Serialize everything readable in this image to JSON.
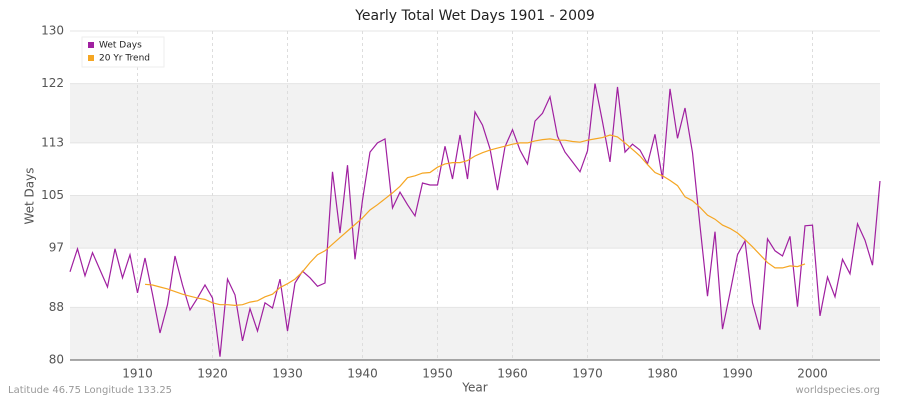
{
  "chart_data": {
    "type": "line",
    "title": "Yearly Total Wet Days 1901 - 2009",
    "xlabel": "Year",
    "ylabel": "Wet Days",
    "footer_left": "Latitude 46.75 Longitude 133.25",
    "footer_right": "worldspecies.org",
    "x": [
      1901,
      1902,
      1903,
      1904,
      1905,
      1906,
      1907,
      1908,
      1909,
      1910,
      1911,
      1912,
      1913,
      1914,
      1915,
      1916,
      1917,
      1918,
      1919,
      1920,
      1921,
      1922,
      1923,
      1924,
      1925,
      1926,
      1927,
      1928,
      1929,
      1930,
      1931,
      1932,
      1933,
      1934,
      1935,
      1936,
      1937,
      1938,
      1939,
      1940,
      1941,
      1942,
      1943,
      1944,
      1945,
      1946,
      1947,
      1948,
      1949,
      1950,
      1951,
      1952,
      1953,
      1954,
      1955,
      1956,
      1957,
      1958,
      1959,
      1960,
      1961,
      1962,
      1963,
      1964,
      1965,
      1966,
      1967,
      1968,
      1969,
      1970,
      1971,
      1972,
      1973,
      1974,
      1975,
      1976,
      1977,
      1978,
      1979,
      1980,
      1981,
      1982,
      1983,
      1984,
      1985,
      1986,
      1987,
      1988,
      1989,
      1990,
      1991,
      1992,
      1993,
      1994,
      1995,
      1996,
      1997,
      1998,
      1999,
      2000,
      2001,
      2002,
      2003,
      2004,
      2005,
      2006,
      2007,
      2008,
      2009
    ],
    "series": [
      {
        "name": "Wet Days",
        "color": "#a020a0",
        "values": [
          93.4,
          96.9,
          92.8,
          96.3,
          93.7,
          91.1,
          96.9,
          92.5,
          96.0,
          90.2,
          95.5,
          90.0,
          84.1,
          88.4,
          95.8,
          91.4,
          87.6,
          89.4,
          91.4,
          89.4,
          80.5,
          92.3,
          89.9,
          82.9,
          87.8,
          84.4,
          88.7,
          87.9,
          92.3,
          84.4,
          91.7,
          93.5,
          92.5,
          91.2,
          91.7,
          108.6,
          99.3,
          109.6,
          95.3,
          104.3,
          111.6,
          113.0,
          113.6,
          103.1,
          105.5,
          103.6,
          101.9,
          106.9,
          106.6,
          106.6,
          112.5,
          107.5,
          114.2,
          107.5,
          117.7,
          115.7,
          112.1,
          105.8,
          112.4,
          115.0,
          111.9,
          109.8,
          116.3,
          117.5,
          120.0,
          114.0,
          111.6,
          110.1,
          108.6,
          111.8,
          122.0,
          116.2,
          110.1,
          121.5,
          111.6,
          112.8,
          111.9,
          109.8,
          114.3,
          107.5,
          121.2,
          113.7,
          118.3,
          111.5,
          100.4,
          89.7,
          99.5,
          84.7,
          90.2,
          96.0,
          98.1,
          88.7,
          84.6,
          98.4,
          96.6,
          95.8,
          98.8,
          88.1,
          100.4,
          100.5,
          86.7,
          92.6,
          89.6,
          95.3,
          93.1,
          100.7,
          98.2,
          94.4,
          107.2
        ]
      },
      {
        "name": "20 Yr Trend",
        "color": "#f5a623",
        "values": [
          null,
          null,
          null,
          null,
          null,
          null,
          null,
          null,
          null,
          null,
          91.5,
          91.4,
          91.1,
          90.8,
          90.4,
          90.0,
          89.7,
          89.4,
          89.2,
          88.7,
          88.4,
          88.4,
          88.3,
          88.4,
          88.8,
          89.0,
          89.6,
          90.0,
          91.0,
          91.6,
          92.3,
          93.4,
          94.8,
          96.0,
          96.6,
          97.6,
          98.6,
          99.6,
          100.6,
          101.6,
          102.8,
          103.6,
          104.5,
          105.4,
          106.4,
          107.7,
          108.0,
          108.4,
          108.5,
          109.3,
          109.8,
          110.0,
          110.0,
          110.3,
          111.0,
          111.5,
          111.9,
          112.2,
          112.5,
          112.8,
          113.0,
          113.0,
          113.3,
          113.5,
          113.6,
          113.4,
          113.4,
          113.2,
          113.1,
          113.4,
          113.6,
          113.8,
          114.2,
          113.9,
          113.0,
          112.0,
          111.0,
          109.7,
          108.5,
          108.0,
          107.3,
          106.5,
          104.8,
          104.2,
          103.2,
          102.0,
          101.4,
          100.5,
          100.0,
          99.3,
          98.3,
          97.2,
          96.0,
          94.8,
          94.0,
          94.0,
          94.3,
          94.2,
          94.6,
          null,
          null,
          null,
          null,
          null,
          null,
          null,
          null,
          null,
          null
        ]
      }
    ],
    "xlim": [
      1901,
      2009
    ],
    "xticks": [
      1910,
      1920,
      1930,
      1940,
      1950,
      1960,
      1970,
      1980,
      1990,
      2000
    ],
    "ylim": [
      80,
      130
    ],
    "yticks": [
      80,
      88,
      97,
      105,
      113,
      122,
      130
    ],
    "grid": true,
    "legend": "upper left"
  }
}
